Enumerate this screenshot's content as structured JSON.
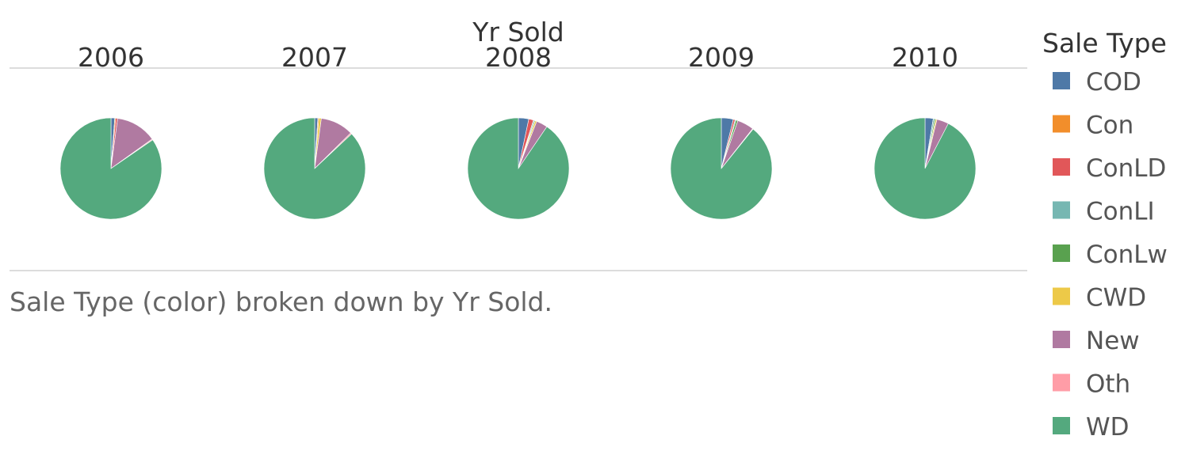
{
  "chart_data": {
    "type": "pie",
    "column_title": "Yr Sold",
    "years": [
      "2006",
      "2007",
      "2008",
      "2009",
      "2010"
    ],
    "legend_title": "Sale Type",
    "categories": [
      "COD",
      "Con",
      "ConLD",
      "ConLI",
      "ConLw",
      "CWD",
      "New",
      "Oth",
      "WD"
    ],
    "colors": {
      "COD": "#4e79a7",
      "Con": "#f28e2b",
      "ConLD": "#e15759",
      "ConLI": "#76b7b2",
      "ConLw": "#59a14f",
      "CWD": "#edc948",
      "New": "#b07aa1",
      "Oth": "#ff9da7",
      "WD": "#54a97e"
    },
    "series": [
      {
        "year": "2006",
        "values": {
          "COD": 1.2,
          "Con": 0.3,
          "ConLD": 0.6,
          "ConLI": 0.0,
          "ConLw": 0.0,
          "CWD": 0.0,
          "New": 13.0,
          "Oth": 0.3,
          "WD": 84.6
        }
      },
      {
        "year": "2007",
        "values": {
          "COD": 1.0,
          "Con": 0.3,
          "ConLD": 0.0,
          "ConLI": 0.0,
          "ConLw": 0.0,
          "CWD": 0.8,
          "New": 10.5,
          "Oth": 0.4,
          "WD": 87.0
        }
      },
      {
        "year": "2008",
        "values": {
          "COD": 3.3,
          "Con": 0.0,
          "ConLD": 1.5,
          "ConLI": 0.3,
          "ConLw": 0.3,
          "CWD": 0.5,
          "New": 3.6,
          "Oth": 0.0,
          "WD": 90.5
        }
      },
      {
        "year": "2009",
        "values": {
          "COD": 3.8,
          "Con": 0.0,
          "ConLD": 0.6,
          "ConLI": 0.3,
          "ConLw": 0.6,
          "CWD": 0.0,
          "New": 5.3,
          "Oth": 0.2,
          "WD": 89.2
        }
      },
      {
        "year": "2010",
        "values": {
          "COD": 2.6,
          "Con": 0.0,
          "ConLD": 0.0,
          "ConLI": 0.4,
          "ConLw": 0.4,
          "CWD": 0.4,
          "New": 3.8,
          "Oth": 0.0,
          "WD": 92.4
        }
      }
    ]
  },
  "caption": "Sale Type (color) broken down by Yr Sold."
}
